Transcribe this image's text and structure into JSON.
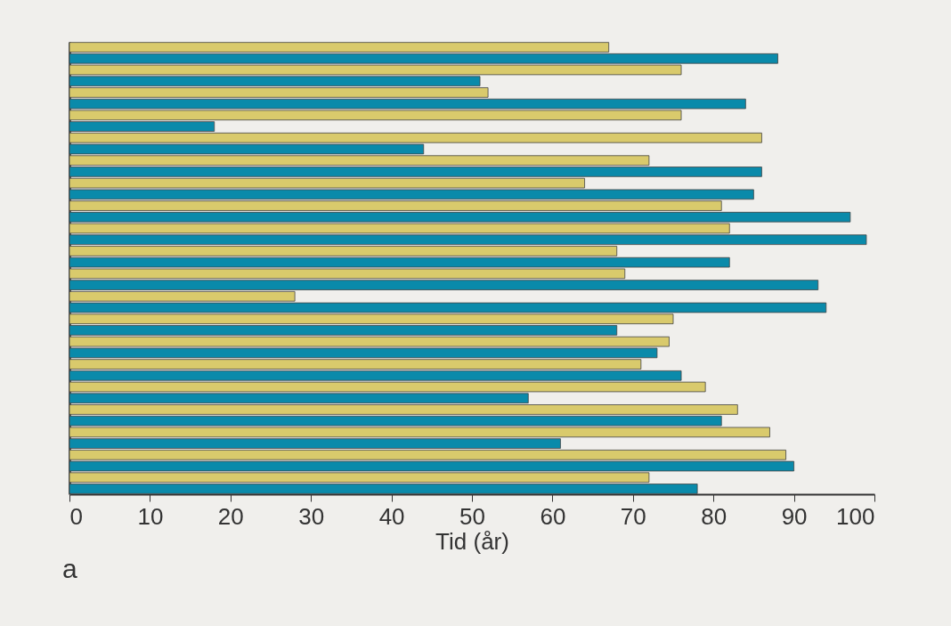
{
  "chart_data": {
    "type": "bar",
    "orientation": "horizontal",
    "xlabel": "Tid (år)",
    "annotations": [
      "a"
    ],
    "categories": [
      null,
      null,
      null,
      null,
      null,
      null,
      null,
      null,
      null,
      null,
      null,
      null,
      null,
      null,
      null,
      null,
      null,
      null,
      null,
      null,
      null,
      null,
      null,
      null,
      null,
      null,
      null,
      null,
      null,
      null,
      null,
      null,
      null,
      null,
      null,
      null,
      null,
      null,
      null,
      null
    ],
    "values": [
      67,
      88,
      76,
      51,
      52,
      84,
      76,
      18,
      86,
      44,
      72,
      86,
      64,
      85,
      81,
      97,
      82,
      99,
      68,
      82,
      69,
      93,
      28,
      94,
      75,
      68,
      74.5,
      73,
      71,
      76,
      79,
      57,
      83,
      81,
      87,
      61,
      89,
      90,
      72,
      78
    ],
    "colors": [
      "#d9ca6c",
      "#0a8aaa",
      "#d9ca6c",
      "#0a8aaa",
      "#d9ca6c",
      "#0a8aaa",
      "#d9ca6c",
      "#0a8aaa",
      "#d9ca6c",
      "#0a8aaa",
      "#d9ca6c",
      "#0a8aaa",
      "#d9ca6c",
      "#0a8aaa",
      "#d9ca6c",
      "#0a8aaa",
      "#d9ca6c",
      "#0a8aaa",
      "#d9ca6c",
      "#0a8aaa",
      "#d9ca6c",
      "#0a8aaa",
      "#d9ca6c",
      "#0a8aaa",
      "#d9ca6c",
      "#0a8aaa",
      "#d9ca6c",
      "#0a8aaa",
      "#d9ca6c",
      "#0a8aaa",
      "#d9ca6c",
      "#0a8aaa",
      "#d9ca6c",
      "#0a8aaa",
      "#d9ca6c",
      "#0a8aaa",
      "#d9ca6c",
      "#0a8aaa",
      "#d9ca6c",
      "#0a8aaa"
    ],
    "xlim": [
      0,
      100
    ],
    "xticks": [
      0,
      10,
      20,
      30,
      40,
      50,
      60,
      70,
      80,
      90,
      100
    ],
    "tick_labels": "x"
  }
}
